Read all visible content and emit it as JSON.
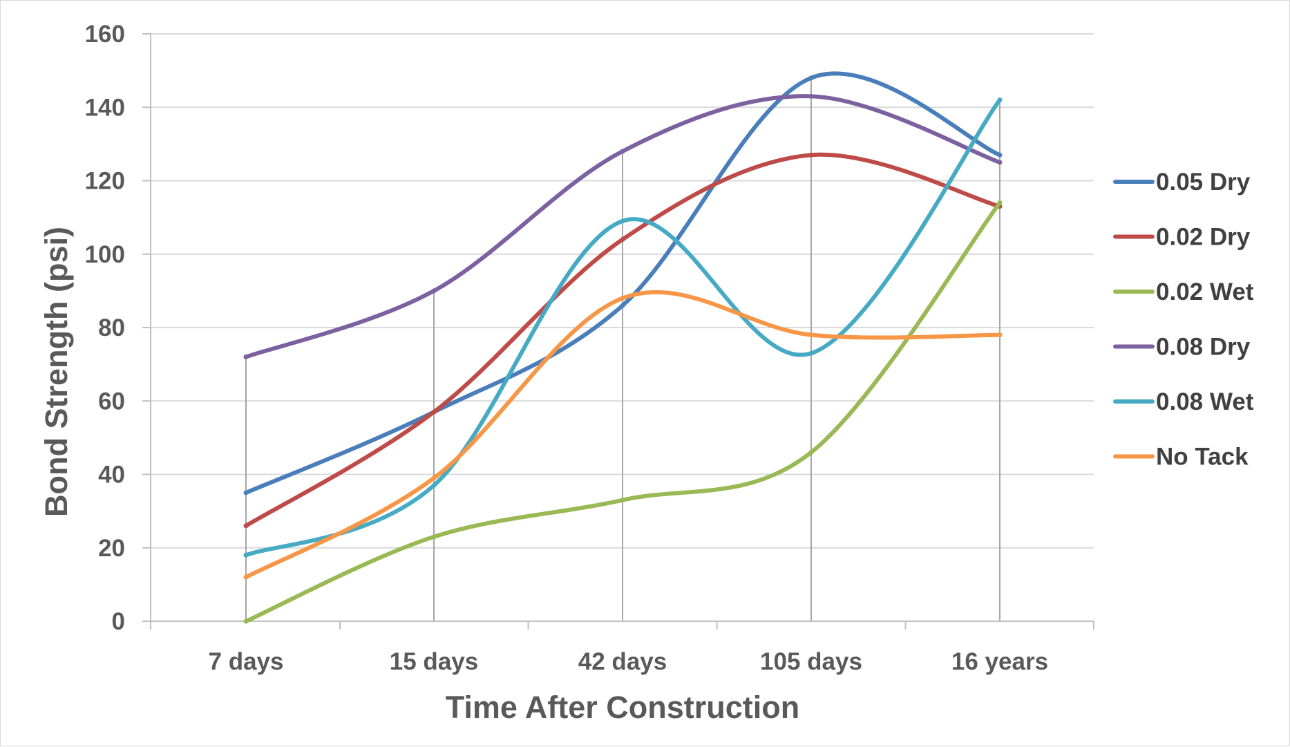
{
  "chart_data": {
    "type": "line",
    "title": "",
    "xlabel": "Time After Construction",
    "ylabel": "Bond Strength (psi)",
    "categories": [
      "7 days",
      "15 days",
      "42 days",
      "105 days",
      "16 years"
    ],
    "ylim": [
      0,
      160
    ],
    "yticks": [
      0,
      20,
      40,
      60,
      80,
      100,
      120,
      140,
      160
    ],
    "grid": true,
    "legend_position": "right",
    "smooth": true,
    "series": [
      {
        "name": "0.05 Dry",
        "color": "#4a7ebb",
        "values": [
          35,
          57,
          86,
          148,
          127
        ]
      },
      {
        "name": "0.02 Dry",
        "color": "#be4b48",
        "values": [
          26,
          57,
          104,
          127,
          113
        ]
      },
      {
        "name": "0.02 Wet",
        "color": "#98b954",
        "values": [
          0,
          23,
          33,
          46,
          114
        ]
      },
      {
        "name": "0.08 Dry",
        "color": "#7d60a0",
        "values": [
          72,
          90,
          128,
          143,
          125
        ]
      },
      {
        "name": "0.08 Wet",
        "color": "#46aac5",
        "values": [
          18,
          37,
          109,
          73,
          142
        ]
      },
      {
        "name": "No Tack",
        "color": "#f79646",
        "values": [
          12,
          39,
          88,
          78,
          78
        ]
      }
    ]
  }
}
